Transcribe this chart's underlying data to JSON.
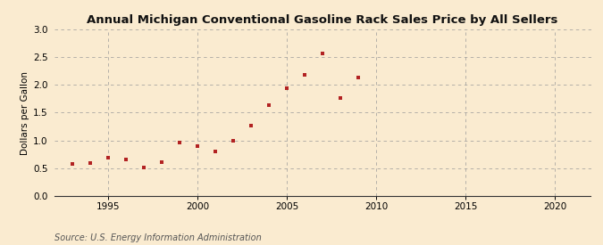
{
  "title": "Annual Michigan Conventional Gasoline Rack Sales Price by All Sellers",
  "ylabel": "Dollars per Gallon",
  "source": "Source: U.S. Energy Information Administration",
  "years": [
    1993,
    1994,
    1995,
    1996,
    1997,
    1998,
    1999,
    2000,
    2001,
    2002,
    2003,
    2004,
    2005,
    2006,
    2007,
    2008,
    2009
  ],
  "values": [
    0.57,
    0.6,
    0.69,
    0.65,
    0.52,
    0.61,
    0.96,
    0.9,
    0.81,
    0.99,
    1.26,
    1.64,
    1.94,
    2.18,
    2.57,
    1.77,
    2.13
  ],
  "marker_color": "#b22222",
  "background_color": "#faebd0",
  "grid_color": "#999999",
  "xlim": [
    1992,
    2022
  ],
  "ylim": [
    0.0,
    3.0
  ],
  "xticks": [
    1995,
    2000,
    2005,
    2010,
    2015,
    2020
  ],
  "yticks": [
    0.0,
    0.5,
    1.0,
    1.5,
    2.0,
    2.5,
    3.0
  ],
  "title_fontsize": 9.5,
  "label_fontsize": 7.5,
  "tick_fontsize": 7.5,
  "source_fontsize": 7
}
